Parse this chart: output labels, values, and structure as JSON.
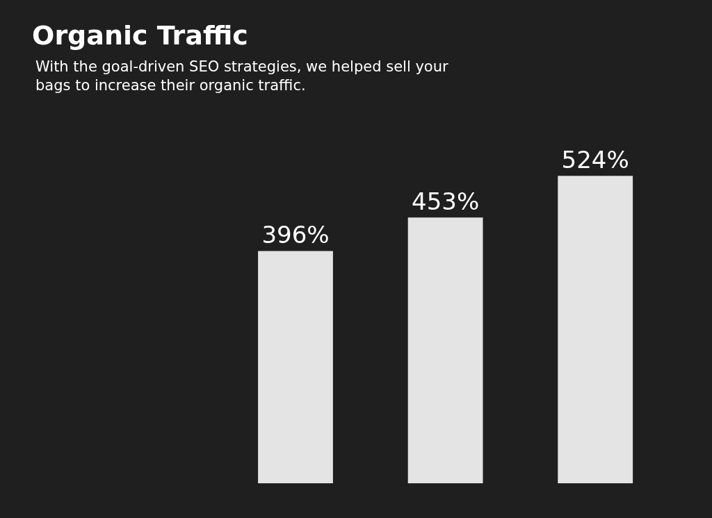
{
  "chart_data": {
    "type": "bar",
    "title": "Organic Traffic",
    "subtitle": "With the goal-driven SEO strategies, we helped sell your bags to increase their organic traffic.",
    "categories": [
      null,
      null,
      null
    ],
    "values": [
      396,
      453,
      524
    ],
    "value_labels": [
      "396%",
      "453%",
      "524%"
    ],
    "color": "#e4e4e4",
    "legend": false
  }
}
